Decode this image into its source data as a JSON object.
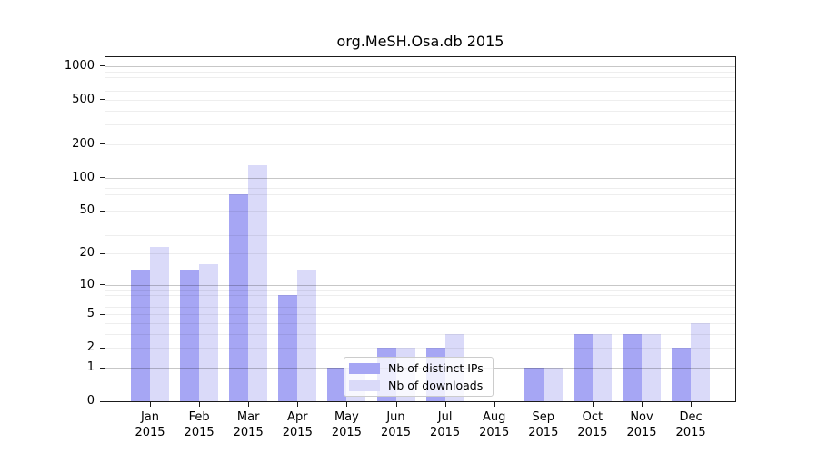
{
  "chart_data": {
    "type": "bar",
    "title": "org.MeSH.Osa.db 2015",
    "categories": [
      "Jan",
      "Feb",
      "Mar",
      "Apr",
      "May",
      "Jun",
      "Jul",
      "Aug",
      "Sep",
      "Oct",
      "Nov",
      "Dec"
    ],
    "year_label": "2015",
    "series": [
      {
        "name": "Nb of distinct IPs",
        "values": [
          14,
          14,
          70,
          8,
          1,
          2,
          2,
          0,
          1,
          3,
          3,
          2
        ]
      },
      {
        "name": "Nb of downloads",
        "values": [
          23,
          16,
          130,
          14,
          1,
          2,
          3,
          0,
          1,
          3,
          3,
          4
        ]
      }
    ],
    "yticks": [
      0,
      1,
      2,
      5,
      10,
      20,
      50,
      100,
      200,
      500,
      1000
    ],
    "minor_gridlines": [
      2,
      3,
      4,
      5,
      6,
      7,
      8,
      9,
      20,
      30,
      40,
      50,
      60,
      70,
      80,
      90,
      200,
      300,
      400,
      500,
      600,
      700,
      800,
      900
    ],
    "major_gridlines": [
      1,
      10,
      100,
      1000
    ],
    "scale": "log10(1+x)",
    "ylim": [
      0,
      1000
    ],
    "xlabel": "",
    "ylabel": "",
    "grid": "horizontal",
    "legend_position": "bottom-center"
  },
  "colors": {
    "bar_ips": "#a6a6f4",
    "bar_downloads": "#dadaf9",
    "grid_minor": "rgba(0,0,0,0.065)",
    "grid_major": "rgba(0,0,0,0.22)",
    "axis": "#1a1a1a"
  }
}
